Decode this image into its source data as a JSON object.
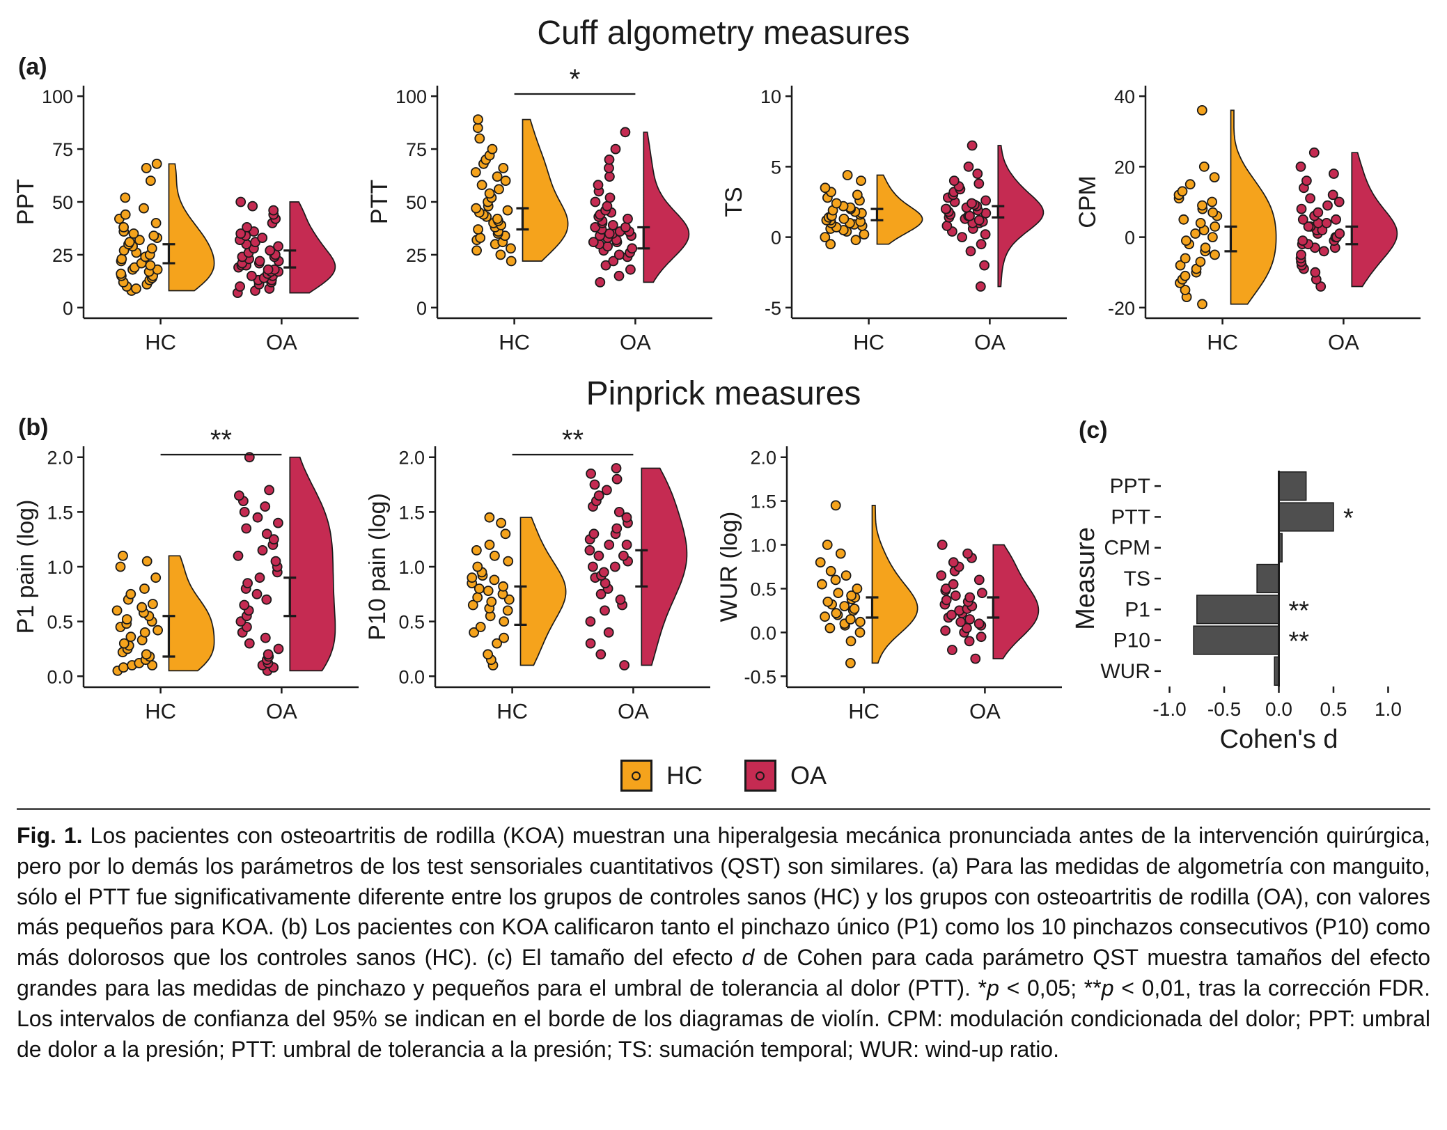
{
  "figure": {
    "title_a": "Cuff algometry measures",
    "title_b": "Pinprick measures",
    "panel_labels": {
      "a": "(a)",
      "b": "(b)",
      "c": "(c)"
    }
  },
  "legend": {
    "items": [
      {
        "label": "HC",
        "color": "#F5A31C"
      },
      {
        "label": "OA",
        "color": "#C52B52"
      }
    ]
  },
  "colors": {
    "hc": "#F5A31C",
    "oa": "#C52B52",
    "bar": "#4F4F4F",
    "axis": "#1a1a1a"
  },
  "chart_data": [
    {
      "id": "ppt",
      "type": "raincloud",
      "panel": "a",
      "ylabel": "PPT",
      "ylim": [
        0,
        100
      ],
      "yticks": [
        0,
        25,
        50,
        75,
        100
      ],
      "yticklabels": [
        "0",
        "25",
        "50",
        "75",
        "100"
      ],
      "categories": [
        "HC",
        "OA"
      ],
      "sig": null,
      "groups": [
        {
          "name": "HC",
          "color": "#F5A31C",
          "ci": [
            21,
            30
          ],
          "points": [
            8,
            9,
            10,
            11,
            12,
            13,
            14,
            15,
            15,
            16,
            17,
            18,
            18,
            19,
            20,
            21,
            22,
            23,
            24,
            25,
            26,
            27,
            28,
            29,
            30,
            31,
            32,
            33,
            34,
            35,
            36,
            38,
            40,
            42,
            44,
            47,
            52,
            60,
            66,
            68
          ]
        },
        {
          "name": "OA",
          "color": "#C52B52",
          "ci": [
            19,
            27
          ],
          "points": [
            7,
            8,
            9,
            10,
            11,
            12,
            13,
            13,
            14,
            15,
            15,
            16,
            17,
            17,
            18,
            18,
            19,
            20,
            20,
            21,
            21,
            22,
            22,
            23,
            24,
            24,
            25,
            26,
            27,
            28,
            29,
            30,
            31,
            32,
            33,
            34,
            35,
            36,
            38,
            40,
            42,
            44,
            46,
            48,
            50
          ]
        }
      ]
    },
    {
      "id": "ptt",
      "type": "raincloud",
      "panel": "a",
      "ylabel": "PTT",
      "ylim": [
        0,
        100
      ],
      "yticks": [
        0,
        25,
        50,
        75,
        100
      ],
      "yticklabels": [
        "0",
        "25",
        "50",
        "75",
        "100"
      ],
      "categories": [
        "HC",
        "OA"
      ],
      "sig": "*",
      "groups": [
        {
          "name": "HC",
          "color": "#F5A31C",
          "ci": [
            37,
            47
          ],
          "points": [
            22,
            25,
            27,
            28,
            30,
            31,
            32,
            33,
            34,
            35,
            36,
            37,
            38,
            39,
            40,
            41,
            42,
            43,
            44,
            45,
            46,
            47,
            48,
            50,
            52,
            54,
            56,
            58,
            60,
            62,
            64,
            66,
            68,
            70,
            72,
            75,
            80,
            85,
            89
          ]
        },
        {
          "name": "OA",
          "color": "#C52B52",
          "ci": [
            28,
            38
          ],
          "points": [
            12,
            15,
            18,
            20,
            22,
            24,
            25,
            26,
            27,
            28,
            29,
            30,
            31,
            31,
            32,
            33,
            33,
            34,
            34,
            35,
            35,
            36,
            36,
            37,
            38,
            38,
            39,
            40,
            41,
            42,
            43,
            44,
            45,
            46,
            48,
            50,
            52,
            55,
            58,
            62,
            66,
            70,
            75,
            83
          ]
        }
      ]
    },
    {
      "id": "ts",
      "type": "raincloud",
      "panel": "a",
      "ylabel": "TS",
      "ylim": [
        -5,
        10
      ],
      "yticks": [
        -5,
        0,
        5,
        10
      ],
      "yticklabels": [
        "-5",
        "0",
        "5",
        "10"
      ],
      "categories": [
        "HC",
        "OA"
      ],
      "sig": null,
      "groups": [
        {
          "name": "HC",
          "color": "#F5A31C",
          "ci": [
            1.2,
            2.0
          ],
          "points": [
            -0.5,
            -0.2,
            0,
            0.2,
            0.4,
            0.5,
            0.6,
            0.7,
            0.8,
            0.9,
            1.0,
            1.0,
            1.1,
            1.2,
            1.2,
            1.3,
            1.4,
            1.5,
            1.5,
            1.6,
            1.7,
            1.8,
            1.9,
            2.0,
            2.1,
            2.2,
            2.4,
            2.6,
            2.8,
            3.0,
            3.2,
            3.5,
            4.0,
            4.4
          ]
        },
        {
          "name": "OA",
          "color": "#C52B52",
          "ci": [
            1.4,
            2.2
          ],
          "points": [
            -3.5,
            -2.0,
            -1.0,
            -0.5,
            0,
            0.2,
            0.4,
            0.6,
            0.8,
            1.0,
            1.0,
            1.1,
            1.2,
            1.3,
            1.4,
            1.5,
            1.5,
            1.6,
            1.7,
            1.8,
            1.9,
            2.0,
            2.0,
            2.1,
            2.2,
            2.3,
            2.4,
            2.5,
            2.6,
            2.8,
            3.0,
            3.2,
            3.4,
            3.6,
            3.8,
            4.0,
            4.5,
            5.0,
            6.5
          ]
        }
      ]
    },
    {
      "id": "cpm",
      "type": "raincloud",
      "panel": "a",
      "ylabel": "CPM",
      "ylim": [
        -20,
        40
      ],
      "yticks": [
        -20,
        0,
        20,
        40
      ],
      "yticklabels": [
        "-20",
        "0",
        "20",
        "40"
      ],
      "categories": [
        "HC",
        "OA"
      ],
      "sig": null,
      "groups": [
        {
          "name": "HC",
          "color": "#F5A31C",
          "ci": [
            -4,
            3
          ],
          "points": [
            -19,
            -17,
            -15,
            -13,
            -12,
            -11,
            -10,
            -9,
            -8,
            -7,
            -6,
            -5,
            -4,
            -3,
            -2,
            -1,
            0,
            1,
            2,
            3,
            4,
            5,
            6,
            7,
            8,
            9,
            10,
            11,
            12,
            13,
            15,
            17,
            20,
            36
          ]
        },
        {
          "name": "OA",
          "color": "#C52B52",
          "ci": [
            -2,
            3
          ],
          "points": [
            -14,
            -12,
            -10,
            -9,
            -8,
            -7,
            -6,
            -5,
            -4,
            -3,
            -3,
            -2,
            -2,
            -1,
            -1,
            0,
            0,
            1,
            1,
            2,
            2,
            3,
            3,
            4,
            4,
            5,
            5,
            6,
            7,
            8,
            9,
            10,
            11,
            12,
            14,
            16,
            18,
            20,
            24
          ]
        }
      ]
    },
    {
      "id": "p1",
      "type": "raincloud",
      "panel": "b",
      "ylabel": "P1 pain (log)",
      "ylim": [
        0,
        2
      ],
      "yticks": [
        0,
        0.5,
        1.0,
        1.5,
        2.0
      ],
      "yticklabels": [
        "0.0",
        "0.5",
        "1.0",
        "1.5",
        "2.0"
      ],
      "categories": [
        "HC",
        "OA"
      ],
      "sig": "**",
      "groups": [
        {
          "name": "HC",
          "color": "#F5A31C",
          "ci": [
            0.18,
            0.55
          ],
          "points": [
            0.05,
            0.08,
            0.1,
            0.1,
            0.12,
            0.15,
            0.18,
            0.2,
            0.22,
            0.25,
            0.28,
            0.3,
            0.33,
            0.36,
            0.4,
            0.42,
            0.45,
            0.48,
            0.5,
            0.52,
            0.55,
            0.58,
            0.6,
            0.63,
            0.66,
            0.7,
            0.75,
            0.8,
            0.9,
            1.0,
            1.05,
            1.1
          ]
        },
        {
          "name": "OA",
          "color": "#C52B52",
          "ci": [
            0.55,
            0.9
          ],
          "points": [
            0.05,
            0.08,
            0.1,
            0.12,
            0.15,
            0.18,
            0.2,
            0.25,
            0.3,
            0.35,
            0.4,
            0.45,
            0.5,
            0.55,
            0.6,
            0.65,
            0.7,
            0.75,
            0.8,
            0.85,
            0.9,
            0.95,
            1.0,
            1.05,
            1.1,
            1.15,
            1.2,
            1.25,
            1.3,
            1.35,
            1.4,
            1.45,
            1.5,
            1.55,
            1.6,
            1.65,
            1.7,
            2.0
          ]
        }
      ]
    },
    {
      "id": "p10",
      "type": "raincloud",
      "panel": "b",
      "ylabel": "P10 pain (log)",
      "ylim": [
        0,
        2
      ],
      "yticks": [
        0,
        0.5,
        1.0,
        1.5,
        2.0
      ],
      "yticklabels": [
        "0.0",
        "0.5",
        "1.0",
        "1.5",
        "2.0"
      ],
      "categories": [
        "HC",
        "OA"
      ],
      "sig": "**",
      "groups": [
        {
          "name": "HC",
          "color": "#F5A31C",
          "ci": [
            0.47,
            0.82
          ],
          "points": [
            0.1,
            0.15,
            0.2,
            0.3,
            0.35,
            0.4,
            0.45,
            0.5,
            0.55,
            0.6,
            0.62,
            0.65,
            0.68,
            0.7,
            0.72,
            0.75,
            0.78,
            0.8,
            0.82,
            0.85,
            0.88,
            0.9,
            0.92,
            0.95,
            1.0,
            1.05,
            1.1,
            1.15,
            1.2,
            1.3,
            1.4,
            1.45
          ]
        },
        {
          "name": "OA",
          "color": "#C52B52",
          "ci": [
            0.82,
            1.15
          ],
          "points": [
            0.1,
            0.2,
            0.3,
            0.4,
            0.5,
            0.6,
            0.65,
            0.7,
            0.75,
            0.8,
            0.85,
            0.9,
            0.92,
            0.95,
            1.0,
            1.0,
            1.05,
            1.1,
            1.1,
            1.15,
            1.2,
            1.2,
            1.25,
            1.3,
            1.3,
            1.35,
            1.4,
            1.45,
            1.5,
            1.55,
            1.6,
            1.65,
            1.7,
            1.75,
            1.8,
            1.85,
            1.9
          ]
        }
      ]
    },
    {
      "id": "wur",
      "type": "raincloud",
      "panel": "b",
      "ylabel": "WUR (log)",
      "ylim": [
        -0.5,
        2
      ],
      "yticks": [
        -0.5,
        0,
        0.5,
        1.0,
        1.5,
        2.0
      ],
      "yticklabels": [
        "-0.5",
        "0.0",
        "0.5",
        "1.0",
        "1.5",
        "2.0"
      ],
      "categories": [
        "HC",
        "OA"
      ],
      "sig": null,
      "groups": [
        {
          "name": "HC",
          "color": "#F5A31C",
          "ci": [
            0.17,
            0.4
          ],
          "points": [
            -0.35,
            -0.1,
            0,
            0.05,
            0.08,
            0.1,
            0.12,
            0.15,
            0.18,
            0.2,
            0.22,
            0.25,
            0.27,
            0.3,
            0.32,
            0.35,
            0.38,
            0.4,
            0.42,
            0.45,
            0.5,
            0.55,
            0.6,
            0.65,
            0.7,
            0.8,
            0.9,
            1.0,
            1.45
          ]
        },
        {
          "name": "OA",
          "color": "#C52B52",
          "ci": [
            0.17,
            0.4
          ],
          "points": [
            -0.3,
            -0.2,
            -0.1,
            -0.05,
            0,
            0.02,
            0.05,
            0.08,
            0.1,
            0.12,
            0.15,
            0.17,
            0.2,
            0.22,
            0.25,
            0.27,
            0.3,
            0.32,
            0.35,
            0.37,
            0.4,
            0.42,
            0.45,
            0.48,
            0.5,
            0.55,
            0.6,
            0.65,
            0.7,
            0.75,
            0.8,
            0.85,
            0.9,
            1.0
          ]
        }
      ]
    },
    {
      "id": "cohens_d",
      "type": "bar",
      "panel": "c",
      "title": "",
      "xlabel": "Cohen's d",
      "ylabel": "Measure",
      "xlim": [
        -1.0,
        1.0
      ],
      "xticks": [
        -1.0,
        -0.5,
        0.0,
        0.5,
        1.0
      ],
      "xticklabels": [
        "-1.0",
        "-0.5",
        "0.0",
        "0.5",
        "1.0"
      ],
      "categories": [
        "PPT",
        "PTT",
        "CPM",
        "TS",
        "P1",
        "P10",
        "WUR"
      ],
      "values": [
        0.25,
        0.5,
        0.03,
        -0.2,
        -0.75,
        -0.78,
        -0.04
      ],
      "sig": [
        "",
        "*",
        "",
        "",
        "**",
        "**",
        ""
      ],
      "bar_color": "#4F4F4F"
    }
  ],
  "caption": {
    "segments": [
      {
        "text": "Fig. 1.",
        "bold": true
      },
      {
        "text": " Los pacientes con osteoartritis de rodilla (KOA) muestran una hiperalgesia mecánica pronunciada antes de la intervención quirúrgica, pero por lo demás los parámetros de los test sensoriales cuantitativos (QST) son similares. (a) Para las medidas de algometría con manguito, sólo el PTT fue significativamente diferente entre los grupos de controles sanos (HC) y los grupos con osteoartritis de rodilla (OA), con valores más pequeños para KOA. (b) Los pacientes con KOA calificaron tanto el pinchazo único (P1) como los 10 pinchazos consecutivos (P10) como más dolorosos que los controles sanos (HC). (c) El tamaño del efecto "
      },
      {
        "text": "d",
        "italic": true
      },
      {
        "text": " de Cohen para cada parámetro QST muestra tamaños del efecto grandes para las medidas de pinchazo y pequeños para el umbral de tolerancia al dolor (PTT). *"
      },
      {
        "text": "p",
        "italic": true
      },
      {
        "text": " < 0,05; **"
      },
      {
        "text": "p",
        "italic": true
      },
      {
        "text": " < 0,01, tras la corrección FDR. Los intervalos de confianza del 95% se indican en el borde de los diagramas de violín. CPM: modulación condicionada del dolor; PPT: umbral de dolor a la presión; PTT: umbral de tolerancia a la presión; TS: sumación temporal; WUR: wind-up ratio."
      }
    ]
  }
}
